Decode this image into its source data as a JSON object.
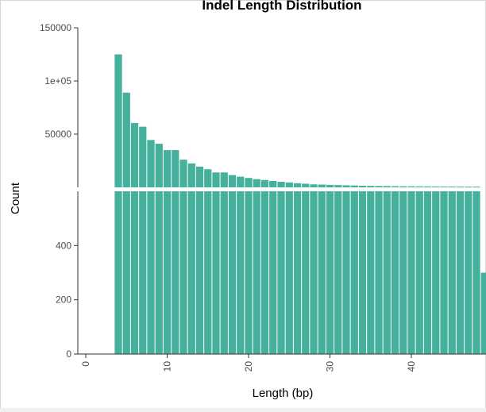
{
  "chart_data": {
    "type": "bar",
    "title": "Indel Length Distribution",
    "xlabel": "Length (bp)",
    "ylabel": "Count",
    "color": "#45b09b",
    "x_ticks": [
      0,
      10,
      20,
      30,
      40
    ],
    "xlim": [
      -0.5,
      49.5
    ],
    "grid": false,
    "broken_y_axis": true,
    "panels": {
      "upper": {
        "ylim": [
          0,
          150000
        ],
        "ticks": [
          50000,
          100000,
          150000
        ],
        "tick_labels": [
          "50000",
          "1e+05",
          "150000"
        ]
      },
      "lower": {
        "ylim": [
          0,
          600
        ],
        "ticks": [
          0,
          200,
          400
        ],
        "tick_labels": [
          "0",
          "200",
          "400"
        ]
      }
    },
    "x": [
      4,
      5,
      6,
      7,
      8,
      9,
      10,
      11,
      12,
      13,
      14,
      15,
      16,
      17,
      18,
      19,
      20,
      21,
      22,
      23,
      24,
      25,
      26,
      27,
      28,
      29,
      30,
      31,
      32,
      33,
      34,
      35,
      36,
      37,
      38,
      39,
      40,
      41,
      42,
      43,
      44,
      45,
      46,
      47,
      48,
      49
    ],
    "values": [
      125000,
      89000,
      60500,
      57000,
      44500,
      41000,
      35000,
      35000,
      26000,
      22500,
      19500,
      17000,
      14000,
      14000,
      11500,
      10000,
      8800,
      7700,
      6900,
      6000,
      5200,
      4600,
      3900,
      3400,
      2800,
      2600,
      2300,
      2100,
      1900,
      1700,
      1500,
      1400,
      1300,
      1200,
      1100,
      1000,
      950,
      900,
      850,
      800,
      750,
      700,
      650,
      650,
      650,
      300
    ]
  }
}
